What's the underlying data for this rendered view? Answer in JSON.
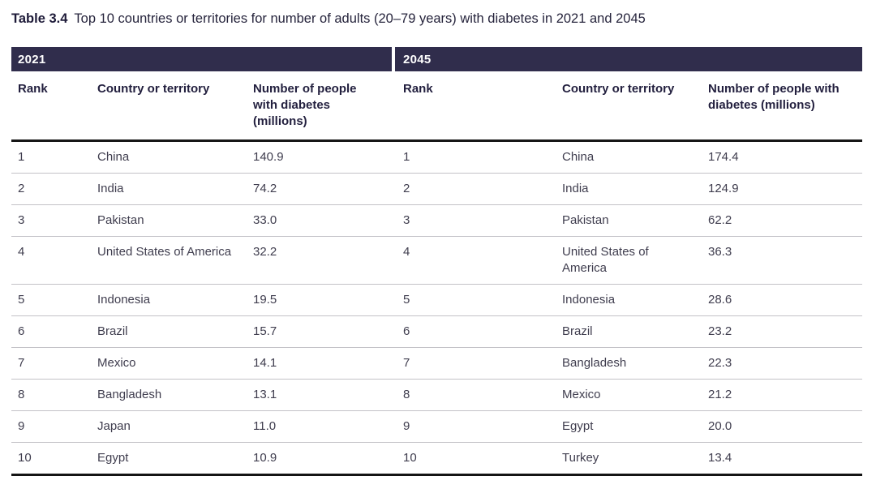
{
  "title": {
    "label": "Table 3.4",
    "text": "Top 10 countries or territories for number of adults (20–79 years) with diabetes in 2021 and 2045"
  },
  "colors": {
    "banner": "#302d4c",
    "header_text": "#221f3e",
    "body_text": "#3f3d4e",
    "thin_rule": "#c3c2c7",
    "heavy_rule": "#141414"
  },
  "sections": [
    {
      "year": "2021",
      "headers": {
        "rank": "Rank",
        "country": "Country or territory",
        "value": "Number of people with diabetes (millions)"
      },
      "rows": [
        {
          "rank": "1",
          "country": "China",
          "value": "140.9"
        },
        {
          "rank": "2",
          "country": "India",
          "value": "74.2"
        },
        {
          "rank": "3",
          "country": "Pakistan",
          "value": "33.0"
        },
        {
          "rank": "4",
          "country": "United States of America",
          "value": "32.2"
        },
        {
          "rank": "5",
          "country": "Indonesia",
          "value": "19.5"
        },
        {
          "rank": "6",
          "country": "Brazil",
          "value": "15.7"
        },
        {
          "rank": "7",
          "country": "Mexico",
          "value": "14.1"
        },
        {
          "rank": "8",
          "country": "Bangladesh",
          "value": "13.1"
        },
        {
          "rank": "9",
          "country": "Japan",
          "value": "11.0"
        },
        {
          "rank": "10",
          "country": "Egypt",
          "value": "10.9"
        }
      ]
    },
    {
      "year": "2045",
      "headers": {
        "rank": "Rank",
        "country": "Country or territory",
        "value": "Number of people with diabetes (millions)"
      },
      "rows": [
        {
          "rank": "1",
          "country": "China",
          "value": "174.4"
        },
        {
          "rank": "2",
          "country": "India",
          "value": "124.9"
        },
        {
          "rank": "3",
          "country": "Pakistan",
          "value": "62.2"
        },
        {
          "rank": "4",
          "country": "United States of America",
          "value": "36.3"
        },
        {
          "rank": "5",
          "country": "Indonesia",
          "value": "28.6"
        },
        {
          "rank": "6",
          "country": "Brazil",
          "value": "23.2"
        },
        {
          "rank": "7",
          "country": "Bangladesh",
          "value": "22.3"
        },
        {
          "rank": "8",
          "country": "Mexico",
          "value": "21.2"
        },
        {
          "rank": "9",
          "country": "Egypt",
          "value": "20.0"
        },
        {
          "rank": "10",
          "country": "Turkey",
          "value": "13.4"
        }
      ]
    }
  ]
}
